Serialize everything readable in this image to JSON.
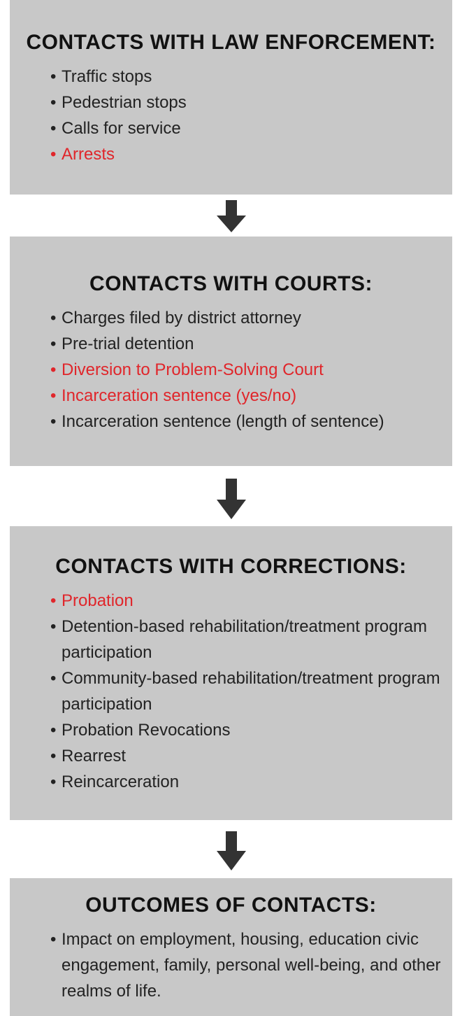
{
  "stages": [
    {
      "title": "CONTACTS WITH LAW ENFORCEMENT:",
      "items": [
        {
          "text": "Traffic stops"
        },
        {
          "text": "Pedestrian stops"
        },
        {
          "text": "Calls for service"
        },
        {
          "text": "Arrests",
          "color": "#e0262b"
        }
      ]
    },
    {
      "title": "CONTACTS WITH COURTS:",
      "items": [
        {
          "text": "Charges filed by district attorney"
        },
        {
          "text": "Pre-trial detention"
        },
        {
          "text": "Diversion to Problem-Solving Court",
          "color": "#e0262b"
        },
        {
          "text": "Incarceration sentence (yes/no)",
          "color": "#e0262b"
        },
        {
          "text": "Incarceration sentence (length of sentence)"
        }
      ]
    },
    {
      "title": "CONTACTS WITH CORRECTIONS:",
      "items": [
        {
          "text": "Probation",
          "color": "#e0262b"
        },
        {
          "text": "Detention-based rehabilitation/treatment program participation"
        },
        {
          "text": "Community-based rehabilitation/treatment program participation"
        },
        {
          "text": "Probation Revocations"
        },
        {
          "text": "Rearrest"
        },
        {
          "text": "Reincarceration"
        }
      ]
    },
    {
      "title": "OUTCOMES OF CONTACTS:",
      "items": [
        {
          "text": "Impact on employment, housing, education civic engagement, family, personal well-being, and other realms of life."
        }
      ]
    }
  ]
}
